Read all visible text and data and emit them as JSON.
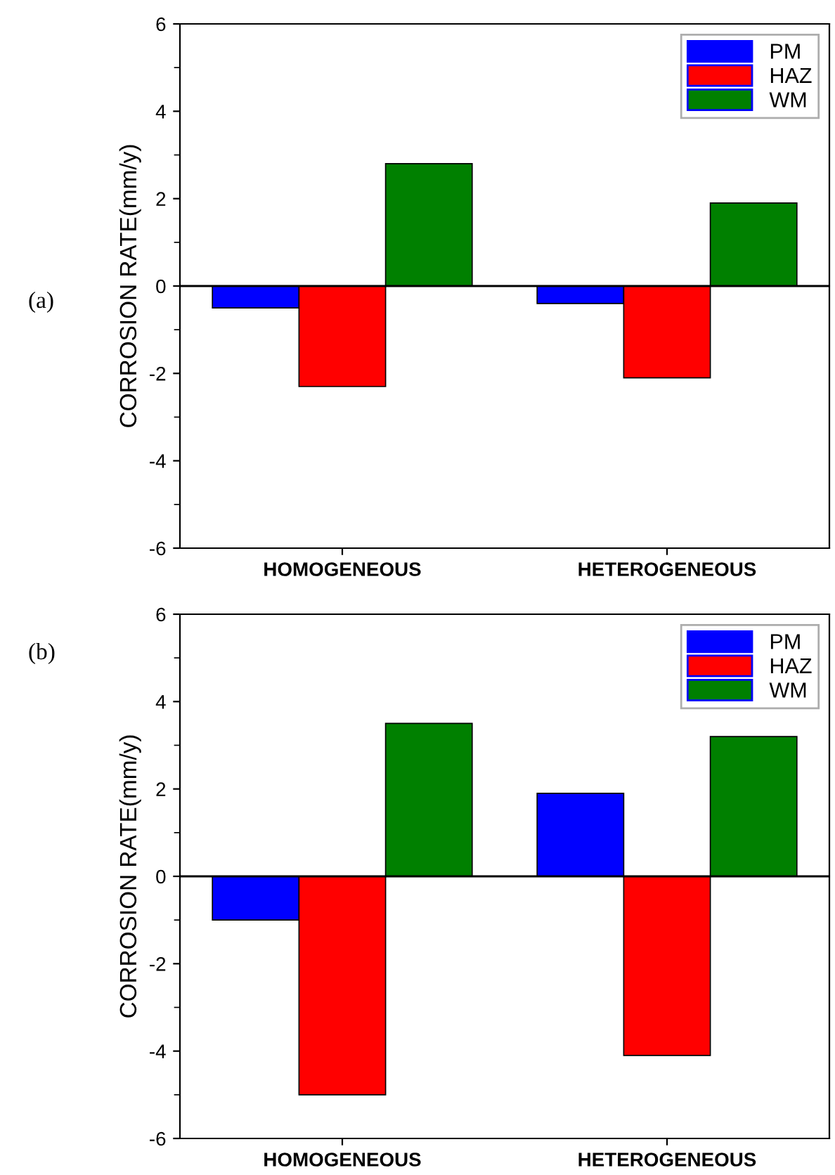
{
  "chart_data": [
    {
      "type": "bar",
      "ylabel": "CORROSION RATE(mm/y)",
      "categories": [
        "HOMOGENEOUS",
        "HETEROGENEOUS"
      ],
      "annotations": [
        "(a)"
      ],
      "series": [
        {
          "name": "PM",
          "color": "#0000ff",
          "values": [
            -0.5,
            -0.4
          ]
        },
        {
          "name": "HAZ",
          "color": "#ff0000",
          "values": [
            -2.3,
            -2.1
          ]
        },
        {
          "name": "WM",
          "color": "#008000",
          "values": [
            2.8,
            1.9
          ]
        }
      ],
      "ylim": [
        -6,
        6
      ],
      "yticks": [
        -6,
        -4,
        -2,
        0,
        2,
        4,
        6
      ],
      "grid": false,
      "legend": "top right",
      "ref_lines": [
        {
          "axis": "y",
          "value": 0,
          "color": "#000000"
        }
      ]
    },
    {
      "type": "bar",
      "ylabel": "CORROSION RATE(mm/y)",
      "categories": [
        "HOMOGENEOUS",
        "HETEROGENEOUS"
      ],
      "annotations": [
        "(b)"
      ],
      "series": [
        {
          "name": "PM",
          "color": "#0000ff",
          "values": [
            -1.0,
            1.9
          ]
        },
        {
          "name": "HAZ",
          "color": "#ff0000",
          "values": [
            -5.0,
            -4.1
          ]
        },
        {
          "name": "WM",
          "color": "#008000",
          "values": [
            3.5,
            3.2
          ]
        }
      ],
      "ylim": [
        -6,
        6
      ],
      "yticks": [
        -6,
        -4,
        -2,
        0,
        2,
        4,
        6
      ],
      "grid": false,
      "legend": "top right",
      "ref_lines": [
        {
          "axis": "y",
          "value": 0,
          "color": "#000000"
        }
      ]
    }
  ]
}
